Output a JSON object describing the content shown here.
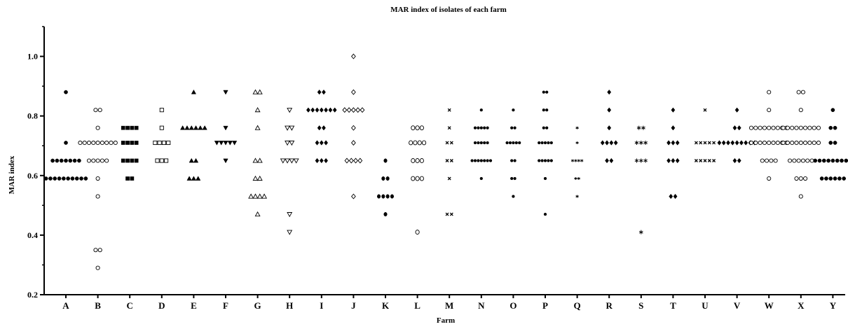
{
  "chart_data": {
    "type": "scatter",
    "title": "MAR index of isolates of each farm",
    "xlabel": "Farm",
    "ylabel": "MAR index",
    "ylim": [
      0.2,
      1.1
    ],
    "yticks": [
      "0.2",
      "0.4",
      "0.6",
      "0.8",
      "1.0"
    ],
    "grid": false,
    "categories": [
      "A",
      "B",
      "C",
      "D",
      "E",
      "F",
      "G",
      "H",
      "I",
      "J",
      "K",
      "L",
      "M",
      "N",
      "O",
      "P",
      "Q",
      "R",
      "S",
      "T",
      "U",
      "V",
      "W",
      "X",
      "Y"
    ],
    "series": [
      {
        "farm": "A",
        "marker": "filled-circle",
        "points": [
          {
            "y": 0.88,
            "n": 1
          },
          {
            "y": 0.71,
            "n": 1
          },
          {
            "y": 0.65,
            "n": 7
          },
          {
            "y": 0.59,
            "n": 10
          }
        ]
      },
      {
        "farm": "B",
        "marker": "open-circle",
        "points": [
          {
            "y": 0.82,
            "n": 2
          },
          {
            "y": 0.76,
            "n": 1
          },
          {
            "y": 0.71,
            "n": 9
          },
          {
            "y": 0.65,
            "n": 5
          },
          {
            "y": 0.59,
            "n": 1
          },
          {
            "y": 0.53,
            "n": 1
          },
          {
            "y": 0.35,
            "n": 2
          },
          {
            "y": 0.29,
            "n": 1
          }
        ]
      },
      {
        "farm": "C",
        "marker": "filled-square",
        "points": [
          {
            "y": 0.76,
            "n": 4
          },
          {
            "y": 0.71,
            "n": 4
          },
          {
            "y": 0.65,
            "n": 4
          },
          {
            "y": 0.59,
            "n": 2
          }
        ]
      },
      {
        "farm": "D",
        "marker": "open-square",
        "points": [
          {
            "y": 0.82,
            "n": 1
          },
          {
            "y": 0.76,
            "n": 1
          },
          {
            "y": 0.71,
            "n": 4
          },
          {
            "y": 0.65,
            "n": 3
          }
        ]
      },
      {
        "farm": "E",
        "marker": "filled-triangle-up",
        "points": [
          {
            "y": 0.88,
            "n": 1
          },
          {
            "y": 0.76,
            "n": 6
          },
          {
            "y": 0.65,
            "n": 2
          },
          {
            "y": 0.59,
            "n": 3
          }
        ]
      },
      {
        "farm": "F",
        "marker": "filled-triangle-down",
        "points": [
          {
            "y": 0.88,
            "n": 1
          },
          {
            "y": 0.76,
            "n": 1
          },
          {
            "y": 0.71,
            "n": 5
          },
          {
            "y": 0.65,
            "n": 1
          }
        ]
      },
      {
        "farm": "G",
        "marker": "open-triangle-up",
        "points": [
          {
            "y": 0.88,
            "n": 2
          },
          {
            "y": 0.82,
            "n": 1
          },
          {
            "y": 0.76,
            "n": 1
          },
          {
            "y": 0.65,
            "n": 2
          },
          {
            "y": 0.59,
            "n": 2
          },
          {
            "y": 0.53,
            "n": 4
          },
          {
            "y": 0.47,
            "n": 1
          }
        ]
      },
      {
        "farm": "H",
        "marker": "open-triangle-down",
        "points": [
          {
            "y": 0.82,
            "n": 1
          },
          {
            "y": 0.76,
            "n": 2
          },
          {
            "y": 0.71,
            "n": 2
          },
          {
            "y": 0.65,
            "n": 4
          },
          {
            "y": 0.47,
            "n": 1
          },
          {
            "y": 0.41,
            "n": 1
          }
        ]
      },
      {
        "farm": "I",
        "marker": "filled-diamond",
        "points": [
          {
            "y": 0.88,
            "n": 2
          },
          {
            "y": 0.82,
            "n": 7
          },
          {
            "y": 0.76,
            "n": 2
          },
          {
            "y": 0.71,
            "n": 3
          },
          {
            "y": 0.65,
            "n": 3
          }
        ]
      },
      {
        "farm": "J",
        "marker": "open-diamond",
        "points": [
          {
            "y": 1.0,
            "n": 1
          },
          {
            "y": 0.88,
            "n": 1
          },
          {
            "y": 0.82,
            "n": 5
          },
          {
            "y": 0.76,
            "n": 1
          },
          {
            "y": 0.71,
            "n": 1
          },
          {
            "y": 0.65,
            "n": 4
          },
          {
            "y": 0.53,
            "n": 1
          }
        ]
      },
      {
        "farm": "K",
        "marker": "filled-hexagon",
        "points": [
          {
            "y": 0.65,
            "n": 1
          },
          {
            "y": 0.59,
            "n": 2
          },
          {
            "y": 0.53,
            "n": 4
          },
          {
            "y": 0.47,
            "n": 1
          }
        ]
      },
      {
        "farm": "L",
        "marker": "open-hexagon",
        "points": [
          {
            "y": 0.76,
            "n": 3
          },
          {
            "y": 0.71,
            "n": 4
          },
          {
            "y": 0.65,
            "n": 3
          },
          {
            "y": 0.59,
            "n": 3
          },
          {
            "y": 0.41,
            "n": 1
          }
        ]
      },
      {
        "farm": "M",
        "marker": "x-mark",
        "points": [
          {
            "y": 0.82,
            "n": 1
          },
          {
            "y": 0.76,
            "n": 1
          },
          {
            "y": 0.71,
            "n": 2
          },
          {
            "y": 0.65,
            "n": 2
          },
          {
            "y": 0.59,
            "n": 1
          },
          {
            "y": 0.47,
            "n": 2
          }
        ]
      },
      {
        "farm": "N",
        "marker": "small-dot",
        "points": [
          {
            "y": 0.82,
            "n": 1
          },
          {
            "y": 0.76,
            "n": 5
          },
          {
            "y": 0.71,
            "n": 5
          },
          {
            "y": 0.65,
            "n": 7
          },
          {
            "y": 0.59,
            "n": 1
          }
        ]
      },
      {
        "farm": "O",
        "marker": "small-dot",
        "points": [
          {
            "y": 0.82,
            "n": 1
          },
          {
            "y": 0.76,
            "n": 2
          },
          {
            "y": 0.71,
            "n": 5
          },
          {
            "y": 0.65,
            "n": 2
          },
          {
            "y": 0.59,
            "n": 2
          },
          {
            "y": 0.53,
            "n": 1
          }
        ]
      },
      {
        "farm": "P",
        "marker": "small-dot",
        "points": [
          {
            "y": 0.88,
            "n": 2
          },
          {
            "y": 0.82,
            "n": 2
          },
          {
            "y": 0.76,
            "n": 2
          },
          {
            "y": 0.71,
            "n": 5
          },
          {
            "y": 0.65,
            "n": 5
          },
          {
            "y": 0.59,
            "n": 1
          },
          {
            "y": 0.47,
            "n": 1
          }
        ]
      },
      {
        "farm": "Q",
        "marker": "star-small",
        "points": [
          {
            "y": 0.76,
            "n": 1
          },
          {
            "y": 0.71,
            "n": 1
          },
          {
            "y": 0.65,
            "n": 4
          },
          {
            "y": 0.59,
            "n": 2
          },
          {
            "y": 0.53,
            "n": 1
          }
        ]
      },
      {
        "farm": "R",
        "marker": "filled-diamond",
        "points": [
          {
            "y": 0.88,
            "n": 1
          },
          {
            "y": 0.82,
            "n": 1
          },
          {
            "y": 0.76,
            "n": 1
          },
          {
            "y": 0.71,
            "n": 4
          },
          {
            "y": 0.65,
            "n": 2
          }
        ]
      },
      {
        "farm": "S",
        "marker": "asterisk",
        "points": [
          {
            "y": 0.76,
            "n": 2
          },
          {
            "y": 0.71,
            "n": 3
          },
          {
            "y": 0.65,
            "n": 3
          },
          {
            "y": 0.41,
            "n": 1
          }
        ]
      },
      {
        "farm": "T",
        "marker": "filled-diamond",
        "points": [
          {
            "y": 0.82,
            "n": 1
          },
          {
            "y": 0.76,
            "n": 1
          },
          {
            "y": 0.71,
            "n": 3
          },
          {
            "y": 0.65,
            "n": 3
          },
          {
            "y": 0.53,
            "n": 2
          }
        ]
      },
      {
        "farm": "U",
        "marker": "x-mark",
        "points": [
          {
            "y": 0.82,
            "n": 1
          },
          {
            "y": 0.71,
            "n": 5
          },
          {
            "y": 0.65,
            "n": 5
          }
        ]
      },
      {
        "farm": "V",
        "marker": "filled-diamond",
        "points": [
          {
            "y": 0.82,
            "n": 1
          },
          {
            "y": 0.76,
            "n": 2
          },
          {
            "y": 0.71,
            "n": 9
          },
          {
            "y": 0.65,
            "n": 2
          }
        ]
      },
      {
        "farm": "W",
        "marker": "open-circle",
        "points": [
          {
            "y": 0.88,
            "n": 1
          },
          {
            "y": 0.82,
            "n": 1
          },
          {
            "y": 0.76,
            "n": 9
          },
          {
            "y": 0.71,
            "n": 9
          },
          {
            "y": 0.65,
            "n": 4
          },
          {
            "y": 0.59,
            "n": 1
          }
        ]
      },
      {
        "farm": "X",
        "marker": "open-circle",
        "points": [
          {
            "y": 0.88,
            "n": 2
          },
          {
            "y": 0.82,
            "n": 1
          },
          {
            "y": 0.76,
            "n": 9
          },
          {
            "y": 0.71,
            "n": 9
          },
          {
            "y": 0.65,
            "n": 6
          },
          {
            "y": 0.59,
            "n": 3
          },
          {
            "y": 0.53,
            "n": 1
          }
        ]
      },
      {
        "farm": "Y",
        "marker": "filled-circle",
        "points": [
          {
            "y": 0.82,
            "n": 1
          },
          {
            "y": 0.76,
            "n": 2
          },
          {
            "y": 0.71,
            "n": 2
          },
          {
            "y": 0.65,
            "n": 9
          },
          {
            "y": 0.59,
            "n": 6
          }
        ]
      }
    ]
  }
}
